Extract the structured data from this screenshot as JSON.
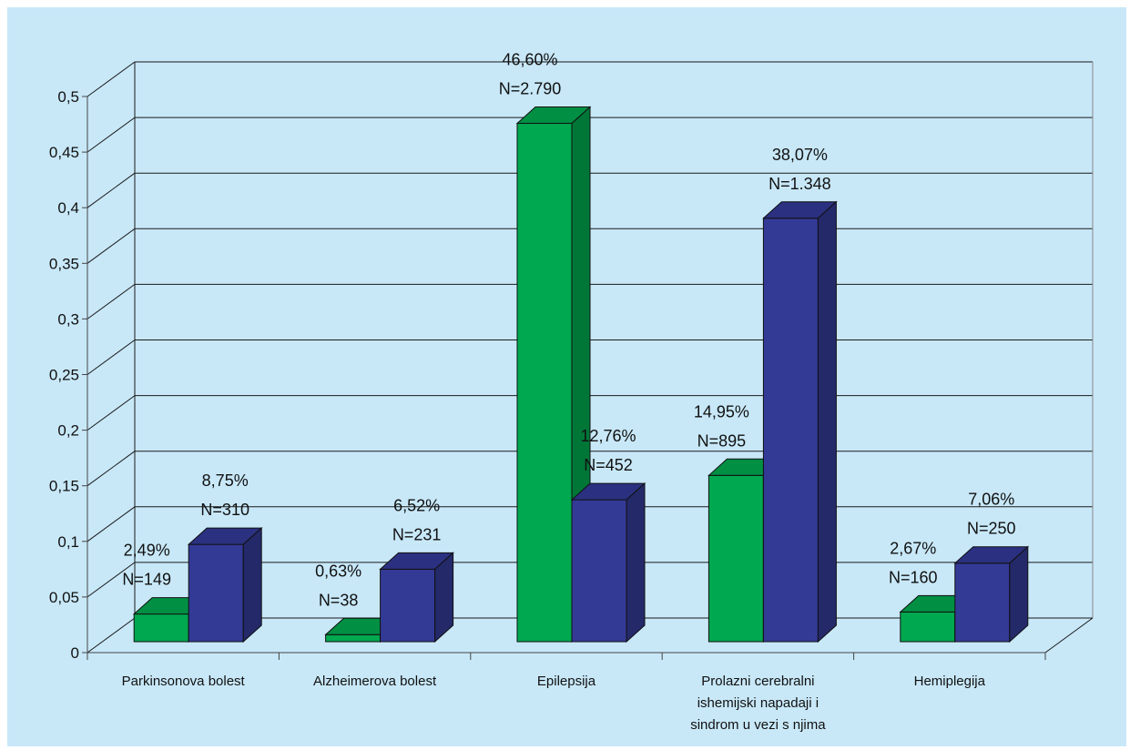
{
  "chart_data": {
    "type": "bar",
    "style": "3d-clustered-column",
    "categories": [
      [
        "Parkinsonova bolest"
      ],
      [
        "Alzheimerova bolest"
      ],
      [
        "Epilepsija"
      ],
      [
        "Prolazni cerebralni",
        "ishemijski napadaji i",
        "sindrom u vezi s njima"
      ],
      [
        "Hemiplegija"
      ]
    ],
    "series": [
      {
        "color": "#00a84f",
        "values": [
          0.0249,
          0.0063,
          0.466,
          0.1495,
          0.0267
        ],
        "labels": [
          [
            "2,49%",
            "N=149"
          ],
          [
            "0,63%",
            "N=38"
          ],
          [
            "46,60%",
            "N=2.790"
          ],
          [
            "14,95%",
            "N=895"
          ],
          [
            "2,67%",
            "N=160"
          ]
        ]
      },
      {
        "color": "#333a96",
        "values": [
          0.0875,
          0.0652,
          0.1276,
          0.3807,
          0.0706
        ],
        "labels": [
          [
            "8,75%",
            "N=310"
          ],
          [
            "6,52%",
            "N=231"
          ],
          [
            "12,76%",
            "N=452"
          ],
          [
            "38,07%",
            "N=1.348"
          ],
          [
            "7,06%",
            "N=250"
          ]
        ]
      }
    ],
    "y_ticks": [
      "0",
      "0,05",
      "0,1",
      "0,15",
      "0,2",
      "0,25",
      "0,3",
      "0,35",
      "0,4",
      "0,45",
      "0,5"
    ],
    "ylim": [
      0,
      0.5
    ],
    "grid": true,
    "legend": "none",
    "background_color": "#c8e8f8",
    "grid_color": "#1a1a1a"
  }
}
